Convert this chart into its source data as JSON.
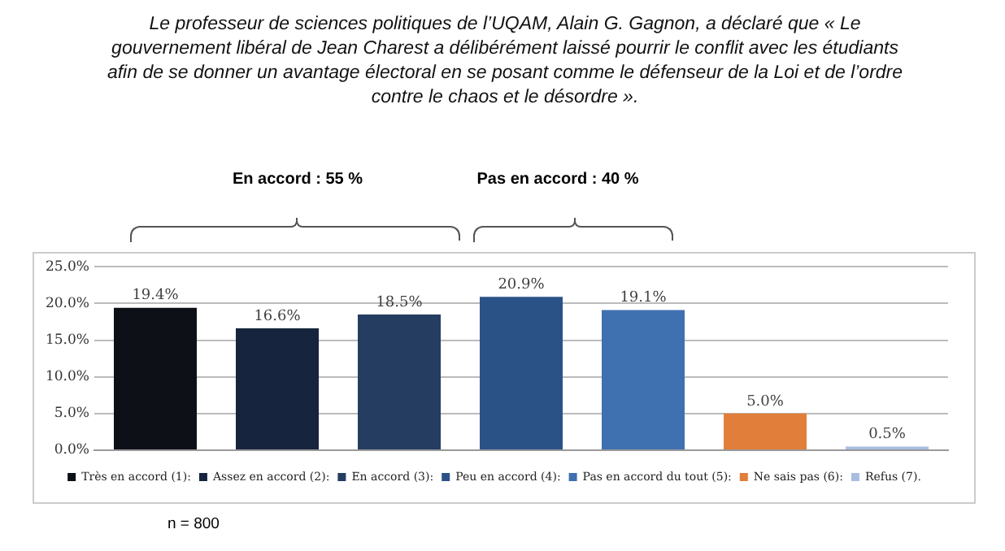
{
  "chart_data": {
    "type": "bar",
    "title": "Le professeur de sciences politiques de l’UQAM, Alain G. Gagnon, a déclaré que « Le gouvernement  libéral de Jean Charest a délibérément  laissé pourrir le conflit avec les étudiants afin de se donner un avantage électoral en se posant comme le défenseur de la Loi et de l’ordre contre le chaos et le désordre ».",
    "annotations": [
      "En accord : 55 %",
      "Pas en accord : 40 %",
      "n = 800"
    ],
    "categories": [
      null
    ],
    "series": [
      {
        "name": "Très en accord (1):",
        "color": "#0d1117",
        "values": [
          19.4
        ],
        "value_labels": [
          "19.4%"
        ]
      },
      {
        "name": "Assez en accord (2):",
        "color": "#17243d",
        "values": [
          16.6
        ],
        "value_labels": [
          "16.6%"
        ]
      },
      {
        "name": "En accord (3):",
        "color": "#243d60",
        "values": [
          18.5
        ],
        "value_labels": [
          "18.5%"
        ]
      },
      {
        "name": "Peu en accord (4):",
        "color": "#2b5287",
        "values": [
          20.9
        ],
        "value_labels": [
          "20.9%"
        ]
      },
      {
        "name": "Pas en accord du tout (5):",
        "color": "#3f70b0",
        "values": [
          19.1
        ],
        "value_labels": [
          "19.1%"
        ]
      },
      {
        "name": "Ne sais pas (6):",
        "color": "#e07e3a",
        "values": [
          5.0
        ],
        "value_labels": [
          "5.0%"
        ]
      },
      {
        "name": "Refus (7).",
        "color": "#a9bde0",
        "values": [
          0.5
        ],
        "value_labels": [
          "0.5%"
        ]
      }
    ],
    "ylim": [
      0,
      25
    ],
    "yticks": [
      {
        "value": 0,
        "label": "0.0%"
      },
      {
        "value": 5,
        "label": "5.0%"
      },
      {
        "value": 10,
        "label": "10.0%"
      },
      {
        "value": 15,
        "label": "15.0%"
      },
      {
        "value": 20,
        "label": "20.0%"
      },
      {
        "value": 25,
        "label": "25.0%"
      }
    ],
    "grid": "y",
    "legend": "bottom",
    "tick_labels": "y"
  }
}
